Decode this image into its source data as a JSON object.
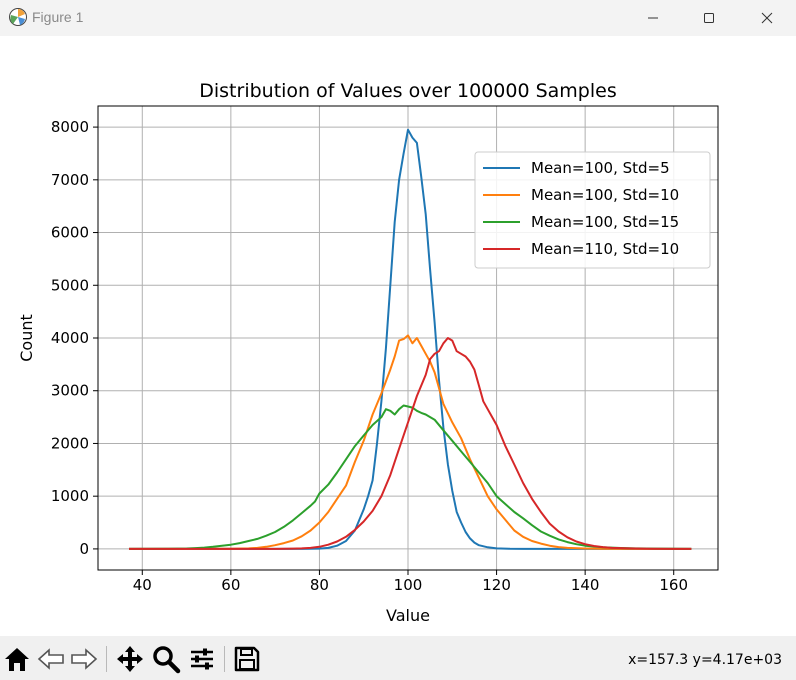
{
  "window": {
    "title": "Figure 1",
    "icon": "matplotlib-icon",
    "controls": [
      "minimize-icon",
      "maximize-icon",
      "close-icon"
    ]
  },
  "toolbar": {
    "buttons": [
      "home-icon",
      "back-arrow-icon",
      "forward-arrow-icon",
      "pan-move-icon",
      "zoom-magnifier-icon",
      "configure-subplots-icon",
      "save-floppy-icon"
    ],
    "coords": "x=157.3 y=4.17e+03"
  },
  "chart_data": {
    "type": "line",
    "title": "Distribution of Values over 100000 Samples",
    "xlabel": "Value",
    "ylabel": "Count",
    "xlim": [
      30,
      170
    ],
    "ylim": [
      -400,
      8400
    ],
    "xticks": [
      40,
      60,
      80,
      100,
      120,
      140,
      160
    ],
    "yticks": [
      0,
      1000,
      2000,
      3000,
      4000,
      5000,
      6000,
      7000,
      8000
    ],
    "grid": true,
    "legend_position": "upper-right",
    "series": [
      {
        "name": "Mean=100, Std=5",
        "color": "#1f77b4",
        "points": [
          [
            37,
            0
          ],
          [
            60,
            0
          ],
          [
            76,
            0
          ],
          [
            80,
            5
          ],
          [
            82,
            20
          ],
          [
            84,
            60
          ],
          [
            86,
            150
          ],
          [
            88,
            350
          ],
          [
            90,
            750
          ],
          [
            91,
            1000
          ],
          [
            92,
            1300
          ],
          [
            93,
            2000
          ],
          [
            94,
            2800
          ],
          [
            95,
            3800
          ],
          [
            96,
            5000
          ],
          [
            97,
            6200
          ],
          [
            98,
            7000
          ],
          [
            99,
            7500
          ],
          [
            100,
            7950
          ],
          [
            101,
            7800
          ],
          [
            102,
            7700
          ],
          [
            103,
            7050
          ],
          [
            104,
            6350
          ],
          [
            105,
            5300
          ],
          [
            106,
            4300
          ],
          [
            107,
            3200
          ],
          [
            108,
            2300
          ],
          [
            109,
            1600
          ],
          [
            110,
            1100
          ],
          [
            111,
            700
          ],
          [
            112,
            500
          ],
          [
            113,
            320
          ],
          [
            114,
            200
          ],
          [
            115,
            120
          ],
          [
            116,
            70
          ],
          [
            118,
            30
          ],
          [
            120,
            10
          ],
          [
            123,
            3
          ],
          [
            126,
            0
          ],
          [
            164,
            0
          ]
        ]
      },
      {
        "name": "Mean=100, Std=10",
        "color": "#ff7f0e",
        "points": [
          [
            37,
            0
          ],
          [
            60,
            2
          ],
          [
            64,
            10
          ],
          [
            66,
            20
          ],
          [
            68,
            40
          ],
          [
            70,
            70
          ],
          [
            72,
            110
          ],
          [
            74,
            160
          ],
          [
            76,
            240
          ],
          [
            78,
            350
          ],
          [
            80,
            500
          ],
          [
            82,
            700
          ],
          [
            84,
            950
          ],
          [
            86,
            1200
          ],
          [
            88,
            1650
          ],
          [
            90,
            2050
          ],
          [
            92,
            2550
          ],
          [
            94,
            2950
          ],
          [
            96,
            3400
          ],
          [
            97,
            3650
          ],
          [
            98,
            3950
          ],
          [
            99,
            3980
          ],
          [
            100,
            4050
          ],
          [
            101,
            3900
          ],
          [
            102,
            4000
          ],
          [
            103,
            3850
          ],
          [
            104,
            3700
          ],
          [
            105,
            3550
          ],
          [
            106,
            3350
          ],
          [
            107,
            3050
          ],
          [
            108,
            2750
          ],
          [
            110,
            2400
          ],
          [
            112,
            2100
          ],
          [
            114,
            1700
          ],
          [
            116,
            1350
          ],
          [
            118,
            1000
          ],
          [
            120,
            750
          ],
          [
            122,
            550
          ],
          [
            124,
            350
          ],
          [
            126,
            230
          ],
          [
            128,
            150
          ],
          [
            130,
            100
          ],
          [
            132,
            60
          ],
          [
            134,
            35
          ],
          [
            136,
            20
          ],
          [
            140,
            8
          ],
          [
            144,
            3
          ],
          [
            150,
            0
          ],
          [
            164,
            0
          ]
        ]
      },
      {
        "name": "Mean=100, Std=15",
        "color": "#2ca02c",
        "points": [
          [
            37,
            0
          ],
          [
            46,
            3
          ],
          [
            50,
            8
          ],
          [
            52,
            15
          ],
          [
            54,
            25
          ],
          [
            56,
            40
          ],
          [
            58,
            60
          ],
          [
            60,
            80
          ],
          [
            62,
            110
          ],
          [
            64,
            150
          ],
          [
            66,
            190
          ],
          [
            68,
            250
          ],
          [
            70,
            320
          ],
          [
            72,
            420
          ],
          [
            74,
            540
          ],
          [
            76,
            680
          ],
          [
            78,
            820
          ],
          [
            79,
            900
          ],
          [
            80,
            1050
          ],
          [
            82,
            1220
          ],
          [
            84,
            1450
          ],
          [
            86,
            1700
          ],
          [
            88,
            1950
          ],
          [
            90,
            2150
          ],
          [
            92,
            2350
          ],
          [
            94,
            2500
          ],
          [
            95,
            2650
          ],
          [
            96,
            2620
          ],
          [
            97,
            2550
          ],
          [
            98,
            2650
          ],
          [
            99,
            2720
          ],
          [
            100,
            2700
          ],
          [
            101,
            2680
          ],
          [
            102,
            2620
          ],
          [
            103,
            2580
          ],
          [
            104,
            2550
          ],
          [
            106,
            2450
          ],
          [
            108,
            2250
          ],
          [
            110,
            2050
          ],
          [
            112,
            1850
          ],
          [
            114,
            1650
          ],
          [
            116,
            1450
          ],
          [
            118,
            1250
          ],
          [
            120,
            1000
          ],
          [
            122,
            850
          ],
          [
            124,
            700
          ],
          [
            126,
            580
          ],
          [
            128,
            450
          ],
          [
            130,
            330
          ],
          [
            132,
            250
          ],
          [
            134,
            180
          ],
          [
            136,
            130
          ],
          [
            138,
            90
          ],
          [
            140,
            60
          ],
          [
            142,
            45
          ],
          [
            144,
            30
          ],
          [
            148,
            18
          ],
          [
            152,
            10
          ],
          [
            156,
            5
          ],
          [
            164,
            0
          ]
        ]
      },
      {
        "name": "Mean=110, Std=10",
        "color": "#d62728",
        "points": [
          [
            37,
            0
          ],
          [
            70,
            0
          ],
          [
            74,
            5
          ],
          [
            76,
            10
          ],
          [
            78,
            20
          ],
          [
            80,
            40
          ],
          [
            82,
            80
          ],
          [
            84,
            140
          ],
          [
            86,
            230
          ],
          [
            88,
            360
          ],
          [
            90,
            520
          ],
          [
            92,
            720
          ],
          [
            94,
            1000
          ],
          [
            96,
            1400
          ],
          [
            98,
            1900
          ],
          [
            100,
            2400
          ],
          [
            102,
            2900
          ],
          [
            104,
            3300
          ],
          [
            105,
            3600
          ],
          [
            106,
            3700
          ],
          [
            107,
            3750
          ],
          [
            108,
            3900
          ],
          [
            109,
            4000
          ],
          [
            110,
            3950
          ],
          [
            111,
            3750
          ],
          [
            112,
            3700
          ],
          [
            113,
            3650
          ],
          [
            114,
            3550
          ],
          [
            115,
            3400
          ],
          [
            116,
            3100
          ],
          [
            117,
            2800
          ],
          [
            118,
            2650
          ],
          [
            120,
            2350
          ],
          [
            122,
            1950
          ],
          [
            124,
            1600
          ],
          [
            126,
            1250
          ],
          [
            128,
            950
          ],
          [
            130,
            700
          ],
          [
            132,
            480
          ],
          [
            134,
            330
          ],
          [
            136,
            220
          ],
          [
            138,
            140
          ],
          [
            140,
            90
          ],
          [
            142,
            55
          ],
          [
            144,
            35
          ],
          [
            146,
            20
          ],
          [
            150,
            10
          ],
          [
            155,
            4
          ],
          [
            160,
            1
          ],
          [
            164,
            0
          ]
        ]
      }
    ]
  }
}
